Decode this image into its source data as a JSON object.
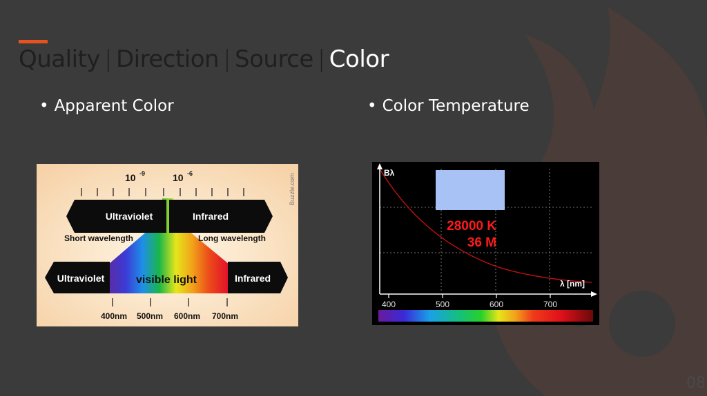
{
  "slide": {
    "title_parts": [
      "Quality",
      "Direction",
      "Source",
      "Color"
    ],
    "title_separator": "|",
    "active_part": "Color",
    "page_number": "08",
    "accent_color": "#e8521f"
  },
  "bullets": [
    {
      "text": "Apparent Color"
    },
    {
      "text": "Color Temperature"
    }
  ],
  "spectrum_figure": {
    "scale_labels": {
      "left": "10",
      "left_exp": "-9",
      "right": "10",
      "right_exp": "-6"
    },
    "credit": "Buzzle.com",
    "top_band": {
      "left": "Ultraviolet",
      "right": "Infrared"
    },
    "wavelength_labels": {
      "short": "Short wavelength",
      "long": "Long wavelength"
    },
    "bottom_band": {
      "left": "Ultraviolet",
      "center": "visible light",
      "right": "Infrared"
    },
    "nm_ticks": [
      "400nm",
      "500nm",
      "600nm",
      "700nm"
    ]
  },
  "blackbody_figure": {
    "y_label": "Bλ",
    "x_label": "λ [nm]",
    "temperature": "28000 K",
    "value": "36 M",
    "x_ticks": [
      "400",
      "500",
      "600",
      "700"
    ],
    "swatch_color": "#a8c2f5",
    "curve_color": "#cc1111",
    "readout_color": "#ff1a1a"
  }
}
